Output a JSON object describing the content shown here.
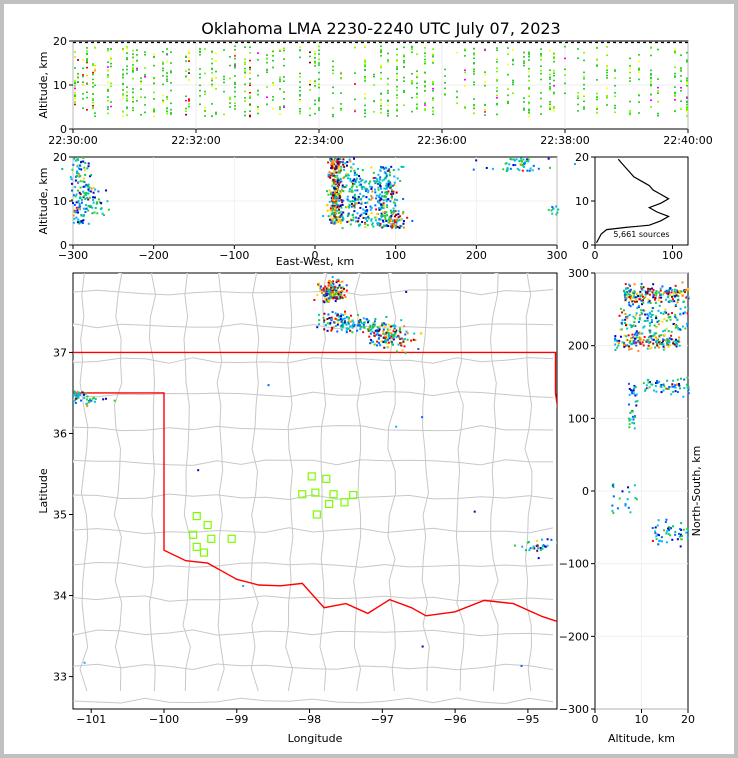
{
  "title": "Oklahoma LMA 2230-2240 UTC July 07, 2023",
  "colors": {
    "background": "#c0c0c0",
    "panel": "#ffffff",
    "state_border": "#ff0000",
    "county_lines": "#c8c8c8",
    "station_marker": "#7cfc00",
    "altitude_profile": "#000000"
  },
  "chart_data": [
    {
      "id": "time_height",
      "type": "scatter",
      "ylabel": "Altitude, km",
      "ylim": [
        0,
        20
      ],
      "xlim": [
        "22:30:00",
        "22:40:00"
      ],
      "xticks": [
        "22:30:00",
        "22:32:00",
        "22:34:00",
        "22:36:00",
        "22:38:00",
        "22:40:00"
      ],
      "yticks": [
        "0",
        "10",
        "20"
      ],
      "grid": true
    },
    {
      "id": "ew_height",
      "type": "heatmap",
      "xlabel": "East-West, km",
      "ylabel": "Altitude, km",
      "xlim": [
        -300,
        300
      ],
      "ylim": [
        0,
        20
      ],
      "xticks": [
        "−300",
        "−200",
        "−100",
        "0",
        "100",
        "200",
        "300"
      ],
      "yticks": [
        "0",
        "10",
        "20"
      ],
      "grid": true
    },
    {
      "id": "altitude_histogram",
      "type": "line",
      "xlim": [
        0,
        120
      ],
      "ylim": [
        0,
        20
      ],
      "xticks": [
        "0",
        "100"
      ],
      "yticks": [
        "0",
        "10",
        "20"
      ],
      "annotation": "5,661 sources",
      "profile": [
        [
          2,
          0.5
        ],
        [
          5,
          1.5
        ],
        [
          8,
          2.5
        ],
        [
          15,
          3.5
        ],
        [
          40,
          4.0
        ],
        [
          70,
          4.5
        ],
        [
          85,
          5.5
        ],
        [
          95,
          6.5
        ],
        [
          80,
          7.5
        ],
        [
          70,
          8.5
        ],
        [
          85,
          9.5
        ],
        [
          95,
          10.5
        ],
        [
          85,
          11.5
        ],
        [
          75,
          12.5
        ],
        [
          70,
          13.5
        ],
        [
          60,
          14.5
        ],
        [
          50,
          15.5
        ],
        [
          45,
          16.5
        ],
        [
          40,
          17.5
        ],
        [
          35,
          18.5
        ],
        [
          30,
          19.5
        ]
      ]
    },
    {
      "id": "plan_view",
      "type": "scatter",
      "xlabel": "Longitude",
      "ylabel": "Latitude",
      "xlim": [
        -101.25,
        -94.6
      ],
      "ylim": [
        32.6,
        37.98
      ],
      "xticks": [
        "−101",
        "−100",
        "−99",
        "−98",
        "−97",
        "−96",
        "−95"
      ],
      "yticks": [
        "33",
        "34",
        "35",
        "36",
        "37"
      ],
      "stations": [
        [
          -99.55,
          34.98
        ],
        [
          -99.4,
          34.87
        ],
        [
          -99.6,
          34.75
        ],
        [
          -99.35,
          34.7
        ],
        [
          -99.55,
          34.6
        ],
        [
          -99.45,
          34.53
        ],
        [
          -99.07,
          34.7
        ],
        [
          -97.97,
          35.47
        ],
        [
          -97.77,
          35.44
        ],
        [
          -98.1,
          35.25
        ],
        [
          -97.92,
          35.27
        ],
        [
          -97.67,
          35.25
        ],
        [
          -97.4,
          35.24
        ],
        [
          -97.73,
          35.13
        ],
        [
          -97.52,
          35.15
        ],
        [
          -97.9,
          35.0
        ]
      ]
    },
    {
      "id": "ns_height",
      "type": "heatmap",
      "xlabel": "Altitude, km",
      "ylabel": "North-South, km",
      "xlim": [
        0,
        20
      ],
      "ylim": [
        -300,
        300
      ],
      "xticks": [
        "0",
        "10",
        "20"
      ],
      "yticks": [
        "−300",
        "−200",
        "−100",
        "0",
        "100",
        "200",
        "300"
      ],
      "grid": true
    }
  ]
}
